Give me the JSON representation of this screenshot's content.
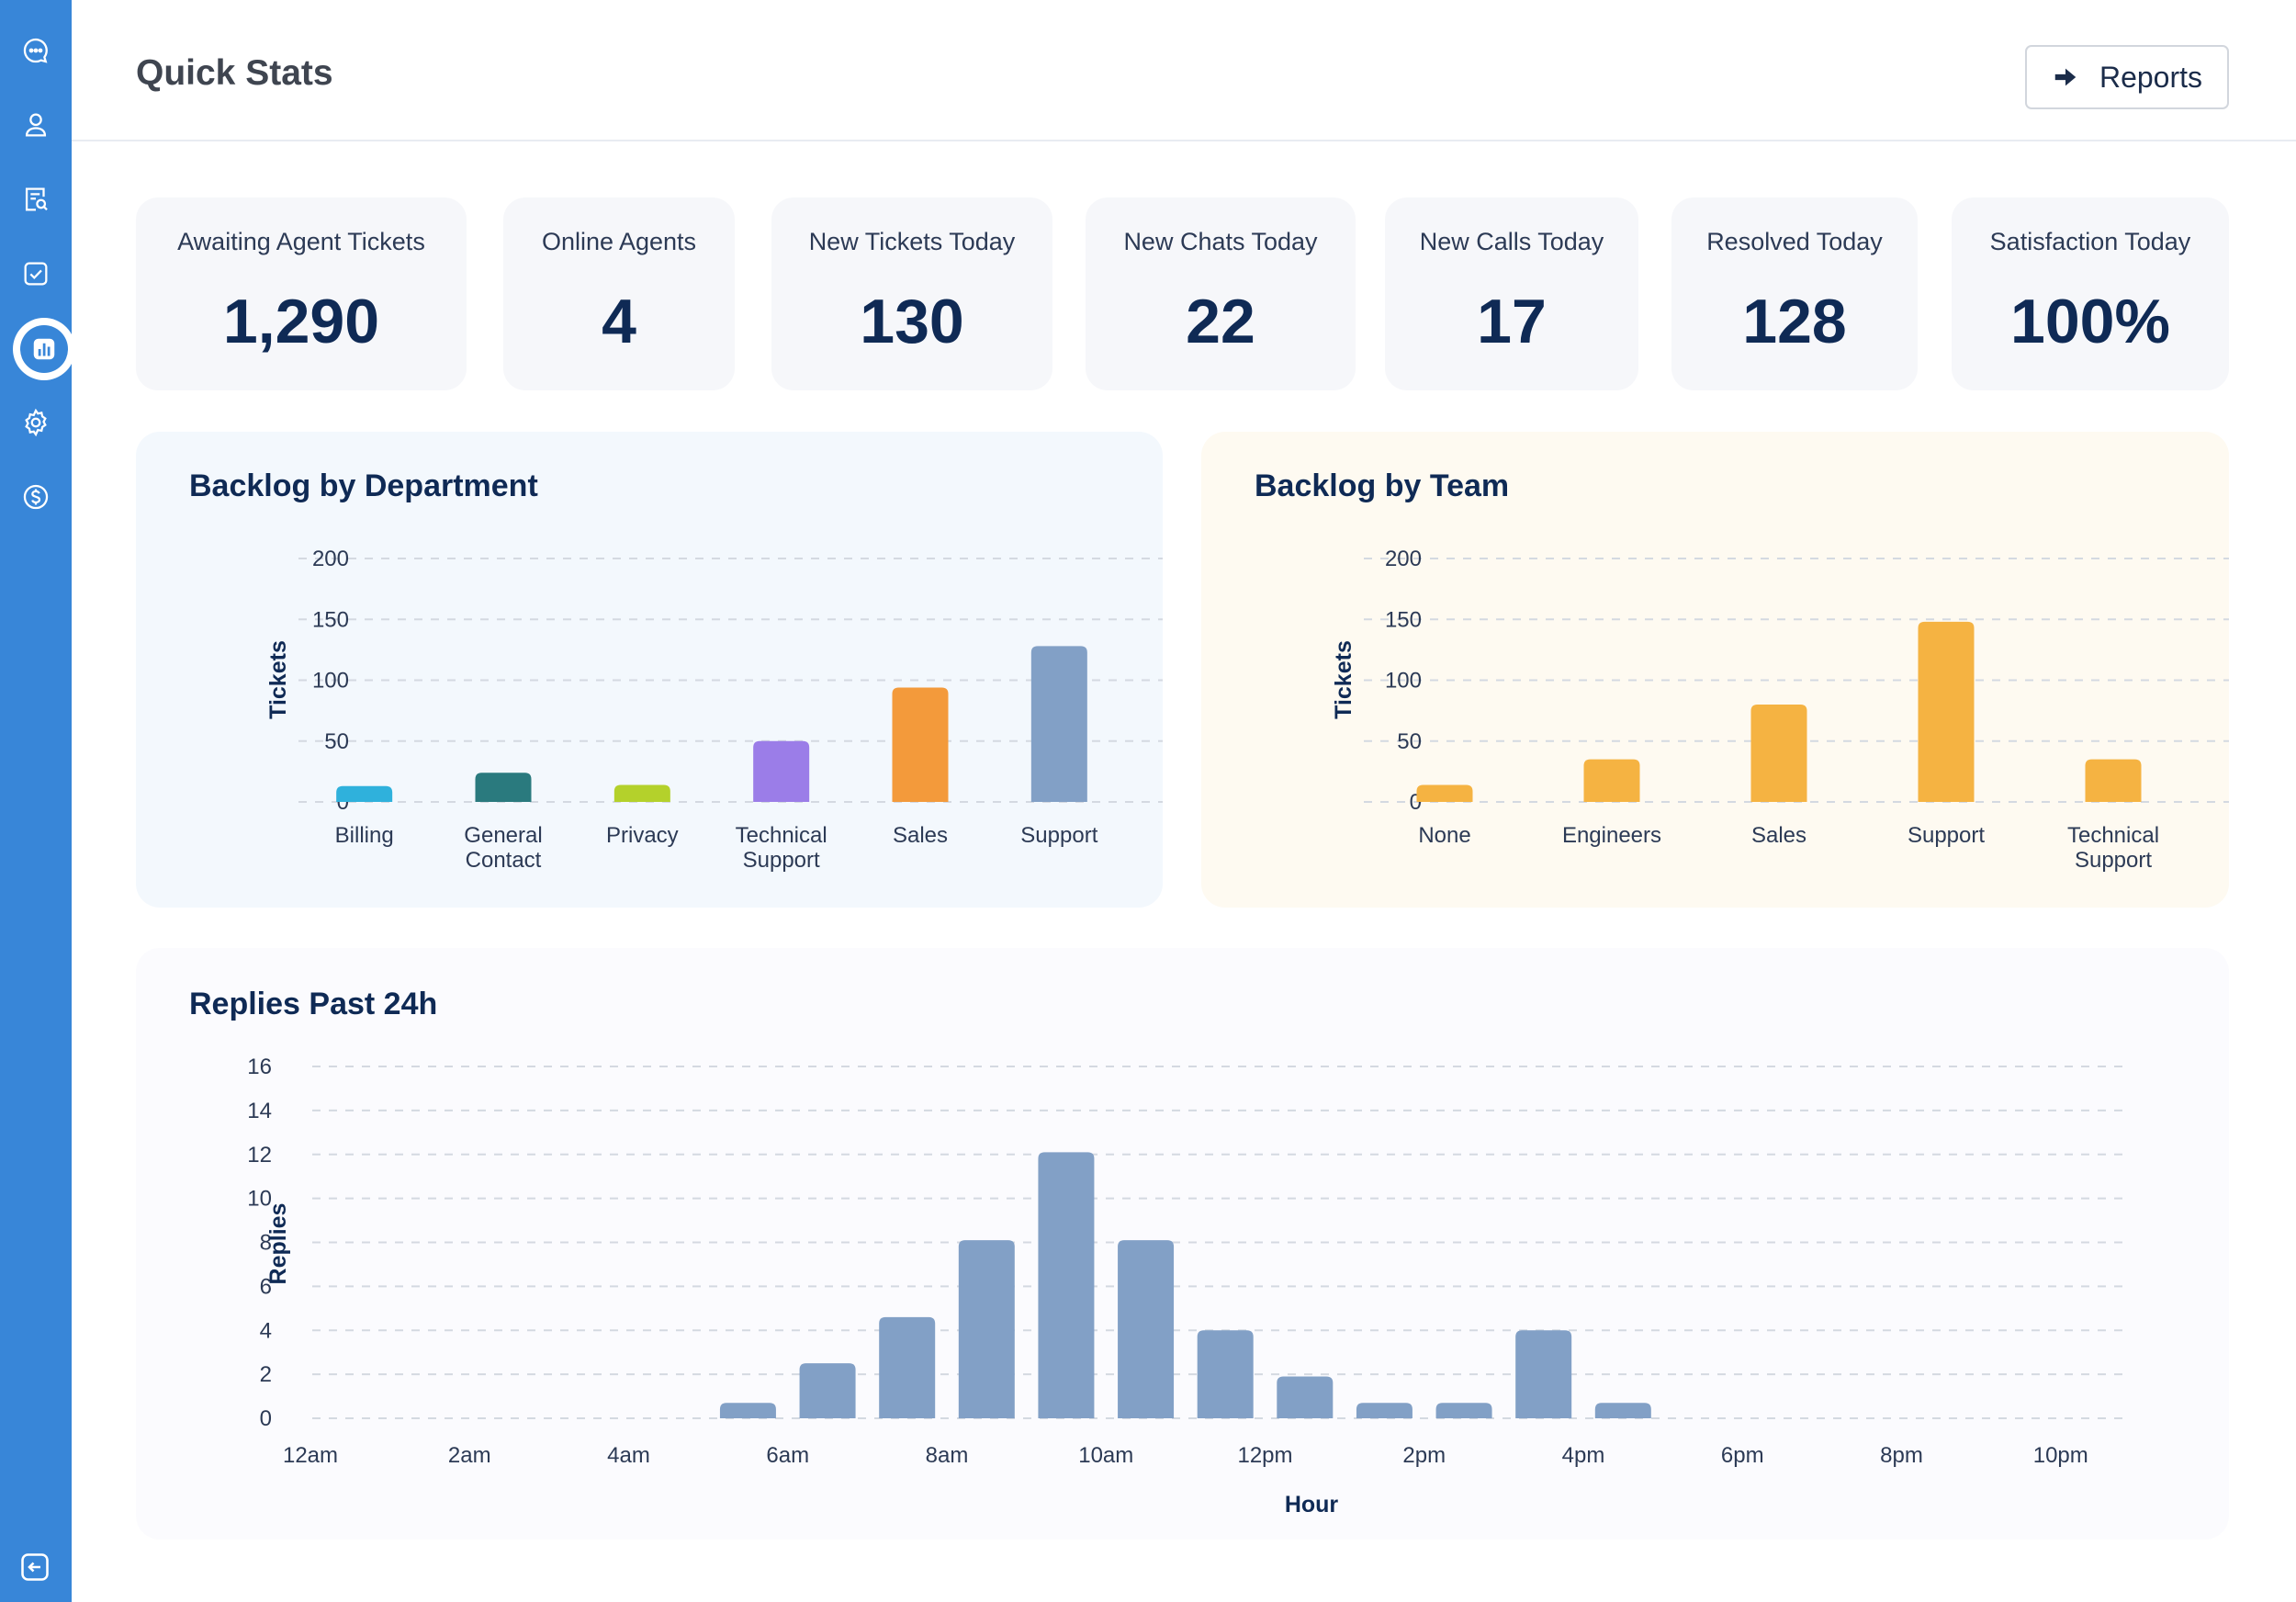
{
  "sidebar": {
    "items": [
      {
        "icon": "chat-bubble-icon"
      },
      {
        "icon": "user-icon"
      },
      {
        "icon": "ticket-search-icon"
      },
      {
        "icon": "checkbox-icon"
      },
      {
        "icon": "bar-chart-icon",
        "active": true
      },
      {
        "icon": "gear-icon"
      },
      {
        "icon": "dollar-icon"
      }
    ],
    "collapse_icon": "collapse-arrow-icon"
  },
  "header": {
    "title": "Quick Stats",
    "reports_label": "Reports"
  },
  "stats": [
    {
      "label": "Awaiting Agent Tickets",
      "value": "1,290"
    },
    {
      "label": "Online Agents",
      "value": "4"
    },
    {
      "label": "New Tickets Today",
      "value": "130"
    },
    {
      "label": "New Chats Today",
      "value": "22"
    },
    {
      "label": "New Calls Today",
      "value": "17"
    },
    {
      "label": "Resolved Today",
      "value": "128"
    },
    {
      "label": "Satisfaction Today",
      "value": "100%"
    }
  ],
  "colors": {
    "sidebar": "#3886d8",
    "title": "#0f2a55",
    "dept_panel_bg": "#f3f8fd",
    "team_panel_bg": "#fefaf1",
    "replies_panel_bg": "#fbfbfe",
    "team_bar": "#f5b342",
    "replies_bar": "#82a0c6"
  },
  "chart_data": [
    {
      "type": "bar",
      "title": "Backlog by Department",
      "xlabel": "",
      "ylabel": "Tickets",
      "ylim": [
        0,
        200
      ],
      "yticks": [
        0,
        50,
        100,
        150,
        200
      ],
      "grid": true,
      "categories": [
        [
          "Billing"
        ],
        [
          "General",
          "Contact"
        ],
        [
          "Privacy"
        ],
        [
          "Technical",
          "Support"
        ],
        [
          "Sales"
        ],
        [
          "Support"
        ]
      ],
      "values": [
        13,
        24,
        14,
        50,
        94,
        128
      ],
      "bar_colors": [
        "#2fb1dc",
        "#2a7a7e",
        "#b4d12b",
        "#9b7de8",
        "#f39a3b",
        "#82a0c6"
      ]
    },
    {
      "type": "bar",
      "title": "Backlog by Team",
      "xlabel": "",
      "ylabel": "Tickets",
      "ylim": [
        0,
        200
      ],
      "yticks": [
        0,
        50,
        100,
        150,
        200
      ],
      "grid": true,
      "categories": [
        [
          "None"
        ],
        [
          "Engineers"
        ],
        [
          "Sales"
        ],
        [
          "Support"
        ],
        [
          "Technical",
          "Support"
        ]
      ],
      "values": [
        14,
        35,
        80,
        148,
        35
      ],
      "bar_color": "#f5b342"
    },
    {
      "type": "bar",
      "title": "Replies Past 24h",
      "xlabel": "Hour",
      "ylabel": "Replies",
      "ylim": [
        0,
        16
      ],
      "yticks": [
        0,
        2,
        4,
        6,
        8,
        10,
        12,
        14,
        16
      ],
      "grid": true,
      "categories": [
        "12am",
        "1am",
        "2am",
        "3am",
        "4am",
        "5am",
        "6am",
        "7am",
        "8am",
        "9am",
        "10am",
        "11am",
        "12pm",
        "1pm",
        "2pm",
        "3pm",
        "4pm",
        "5pm",
        "6pm",
        "7pm",
        "8pm",
        "9pm",
        "10pm",
        "11pm"
      ],
      "tick_labels": [
        "12am",
        "2am",
        "4am",
        "6am",
        "8am",
        "10am",
        "12pm",
        "2pm",
        "4pm",
        "6pm",
        "8pm",
        "10pm"
      ],
      "values": [
        0,
        0,
        0,
        0,
        0,
        0.7,
        2.5,
        4.6,
        8.1,
        12.1,
        8.1,
        4.0,
        1.9,
        0.7,
        0.7,
        4.0,
        0.7,
        0,
        0,
        0,
        0,
        0,
        0,
        0
      ],
      "bar_color": "#82a0c6"
    }
  ]
}
